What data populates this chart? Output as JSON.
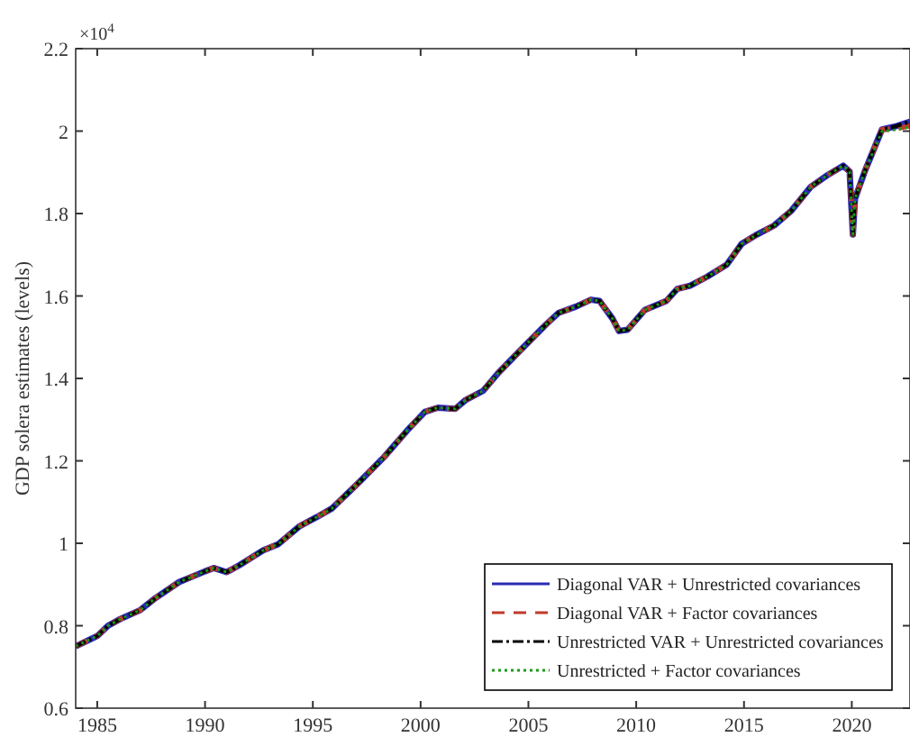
{
  "chart_data": {
    "type": "line",
    "ylabel": "GDP solera estimates (levels)",
    "annotations": [
      "×10$^{4}$"
    ],
    "x": [
      1984.0,
      1985.0,
      1985.5,
      1986.06,
      1987.0,
      1987.7,
      1988.8,
      1990.0,
      1990.4,
      1991.0,
      1991.6,
      1992.7,
      1993.4,
      1994.4,
      1995.2,
      1995.9,
      1997.2,
      1998.3,
      1999.4,
      2000.2,
      2000.8,
      2001.6,
      2002.1,
      2002.9,
      2003.6,
      2004.7,
      2005.8,
      2006.4,
      2007.2,
      2007.9,
      2008.3,
      2008.9,
      2009.2,
      2009.6,
      2010.4,
      2011.4,
      2011.9,
      2012.5,
      2013.3,
      2014.2,
      2014.9,
      2015.6,
      2016.4,
      2017.2,
      2018.1,
      2018.9,
      2019.6,
      2019.9,
      2020.05,
      2020.15,
      2020.6,
      2021.4,
      2022.0,
      2022.7
    ],
    "series": [
      {
        "name": "Diagonal VAR + Unrestricted covariances",
        "color": "#2b2bb5",
        "line_style": "solid",
        "values": [
          0.75,
          0.775,
          0.8,
          0.816,
          0.838,
          0.867,
          0.906,
          0.932,
          0.94,
          0.93,
          0.947,
          0.983,
          0.998,
          1.042,
          1.064,
          1.085,
          1.151,
          1.209,
          1.275,
          1.319,
          1.329,
          1.326,
          1.348,
          1.37,
          1.413,
          1.472,
          1.53,
          1.559,
          1.574,
          1.591,
          1.588,
          1.545,
          1.515,
          1.518,
          1.566,
          1.588,
          1.617,
          1.625,
          1.647,
          1.676,
          1.727,
          1.749,
          1.771,
          1.807,
          1.865,
          1.894,
          1.916,
          1.902,
          1.749,
          1.836,
          1.902,
          2.004,
          2.011,
          2.023
        ]
      },
      {
        "name": "Diagonal VAR + Factor covariances",
        "color": "#c0392b",
        "line_style": "dashed",
        "values": [
          0.75,
          0.775,
          0.8,
          0.816,
          0.838,
          0.867,
          0.906,
          0.932,
          0.94,
          0.93,
          0.947,
          0.983,
          0.998,
          1.042,
          1.064,
          1.085,
          1.151,
          1.209,
          1.275,
          1.319,
          1.329,
          1.326,
          1.348,
          1.37,
          1.413,
          1.472,
          1.53,
          1.559,
          1.574,
          1.591,
          1.588,
          1.545,
          1.515,
          1.518,
          1.566,
          1.588,
          1.617,
          1.625,
          1.647,
          1.676,
          1.727,
          1.749,
          1.771,
          1.807,
          1.865,
          1.894,
          1.916,
          1.902,
          1.749,
          1.836,
          1.902,
          2.004,
          2.005,
          2.013
        ]
      },
      {
        "name": "Unrestricted VAR + Unrestricted covariances",
        "color": "#000000",
        "line_style": "dashdot",
        "values": [
          0.75,
          0.775,
          0.8,
          0.816,
          0.838,
          0.867,
          0.906,
          0.932,
          0.94,
          0.93,
          0.947,
          0.983,
          0.998,
          1.042,
          1.064,
          1.085,
          1.151,
          1.209,
          1.275,
          1.319,
          1.329,
          1.326,
          1.348,
          1.37,
          1.413,
          1.472,
          1.53,
          1.559,
          1.574,
          1.591,
          1.588,
          1.545,
          1.515,
          1.518,
          1.566,
          1.588,
          1.617,
          1.625,
          1.647,
          1.676,
          1.727,
          1.749,
          1.771,
          1.807,
          1.865,
          1.894,
          1.916,
          1.902,
          1.749,
          1.836,
          1.902,
          2.004,
          2.011,
          2.023
        ]
      },
      {
        "name": "Unrestricted + Factor covariances",
        "color": "#1a9a1a",
        "line_style": "dotted",
        "values": [
          0.75,
          0.775,
          0.8,
          0.816,
          0.838,
          0.867,
          0.906,
          0.932,
          0.94,
          0.93,
          0.947,
          0.983,
          0.998,
          1.042,
          1.064,
          1.085,
          1.151,
          1.209,
          1.275,
          1.319,
          1.329,
          1.326,
          1.348,
          1.37,
          1.413,
          1.472,
          1.53,
          1.559,
          1.574,
          1.591,
          1.588,
          1.545,
          1.515,
          1.518,
          1.566,
          1.588,
          1.617,
          1.625,
          1.647,
          1.676,
          1.727,
          1.749,
          1.771,
          1.807,
          1.865,
          1.894,
          1.916,
          1.902,
          1.749,
          1.836,
          1.902,
          2.0,
          2.003,
          2.01
        ]
      }
    ],
    "xlim": [
      1984.0,
      2022.7
    ],
    "xticks": [
      1985,
      1990,
      1995,
      2000,
      2005,
      2010,
      2015,
      2020
    ],
    "ylim": [
      0.6,
      2.2
    ],
    "yticks": [
      0.6,
      0.8,
      1,
      1.2,
      1.4,
      1.6,
      1.8,
      2,
      2.2
    ],
    "grid": false,
    "legend": "bottom right"
  }
}
